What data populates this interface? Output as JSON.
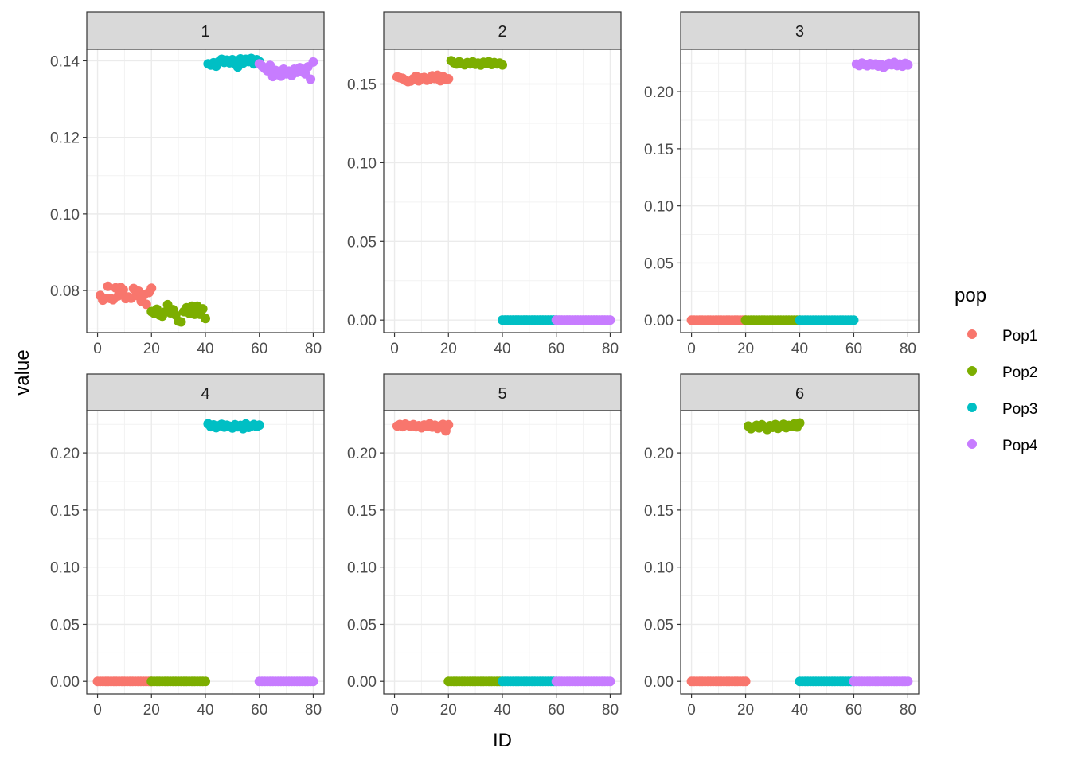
{
  "chart_data": {
    "type": "scatter",
    "layout": "faceted 2x3",
    "xlabel": "ID",
    "ylabel": "value",
    "legend": {
      "title": "pop",
      "position": "right",
      "entries": [
        {
          "name": "Pop1",
          "color": "#F8766D"
        },
        {
          "name": "Pop2",
          "color": "#7CAE00"
        },
        {
          "name": "Pop3",
          "color": "#00BFC4"
        },
        {
          "name": "Pop4",
          "color": "#C77CFF"
        }
      ]
    },
    "x_ticks": [
      "0",
      "20",
      "40",
      "60",
      "80"
    ],
    "xlim": [
      0,
      80
    ],
    "grid": true,
    "facets": [
      {
        "label": "1",
        "ylim": [
          0.069,
          0.143
        ],
        "y_ticks": [
          "0.08",
          "0.10",
          "0.12",
          "0.14"
        ],
        "series": [
          {
            "name": "Pop1",
            "segment": [
              1,
              20
            ],
            "values": [
              0.0787,
              0.0775,
              0.0779,
              0.0811,
              0.0779,
              0.0776,
              0.0807,
              0.0786,
              0.0808,
              0.0802,
              0.0779,
              0.0783,
              0.078,
              0.0805,
              0.0787,
              0.0798,
              0.0772,
              0.0788,
              0.0764,
              0.0795,
              0.0806
            ]
          },
          {
            "name": "Pop2",
            "segment": [
              20,
              40
            ],
            "values": [
              0.0745,
              0.0741,
              0.0751,
              0.0736,
              0.0733,
              0.0744,
              0.0763,
              0.0742,
              0.075,
              0.0736,
              0.072,
              0.0718,
              0.0745,
              0.0755,
              0.0741,
              0.0759,
              0.0738,
              0.0759,
              0.0738,
              0.0752,
              0.0727
            ]
          },
          {
            "name": "Pop3",
            "segment": [
              41,
              60
            ],
            "values": [
              0.1392,
              0.1389,
              0.1395,
              0.1386,
              0.1398,
              0.1404,
              0.1396,
              0.1402,
              0.1395,
              0.1403,
              0.1393,
              0.1384,
              0.1405,
              0.1394,
              0.1404,
              0.1398,
              0.1406,
              0.1392,
              0.1403,
              0.1398
            ]
          },
          {
            "name": "Pop4",
            "segment": [
              60,
              80
            ],
            "values": [
              0.1392,
              0.1386,
              0.138,
              0.1374,
              0.1388,
              0.1359,
              0.1375,
              0.1368,
              0.136,
              0.1378,
              0.1366,
              0.1373,
              0.1362,
              0.1378,
              0.137,
              0.1382,
              0.1373,
              0.1366,
              0.1384,
              0.1352,
              0.1397
            ]
          }
        ]
      },
      {
        "label": "2",
        "ylim": [
          -0.008,
          0.172
        ],
        "y_ticks": [
          "0.00",
          "0.05",
          "0.10",
          "0.15"
        ],
        "series": [
          {
            "name": "Pop1",
            "segment": [
              1,
              20
            ],
            "values": [
              0.1545,
              0.154,
              0.1536,
              0.1523,
              0.1515,
              0.1519,
              0.1534,
              0.1549,
              0.152,
              0.1538,
              0.1541,
              0.1524,
              0.153,
              0.1552,
              0.1535,
              0.1555,
              0.1521,
              0.1546,
              0.153,
              0.1533
            ]
          },
          {
            "name": "Pop2",
            "segment": [
              21,
              40
            ],
            "values": [
              0.1648,
              0.1635,
              0.1627,
              0.1641,
              0.163,
              0.1622,
              0.1636,
              0.1628,
              0.1641,
              0.1625,
              0.1633,
              0.162,
              0.1638,
              0.1629,
              0.1641,
              0.1624,
              0.1636,
              0.1628,
              0.1633,
              0.1621
            ]
          },
          {
            "name": "Pop3",
            "segment": [
              40,
              60
            ],
            "values": [
              0,
              0,
              0,
              0,
              0,
              0,
              0,
              0,
              0,
              0,
              0,
              0,
              0,
              0,
              0,
              0,
              0,
              0,
              0,
              0,
              0
            ]
          },
          {
            "name": "Pop4",
            "segment": [
              60,
              80
            ],
            "values": [
              0,
              0,
              0,
              0,
              0,
              0,
              0,
              0,
              0,
              0,
              0,
              0,
              0,
              0,
              0,
              0,
              0,
              0,
              0,
              0,
              0
            ]
          }
        ]
      },
      {
        "label": "3",
        "ylim": [
          -0.011,
          0.237
        ],
        "y_ticks": [
          "0.00",
          "0.05",
          "0.10",
          "0.15",
          "0.20"
        ],
        "series": [
          {
            "name": "Pop1",
            "segment": [
              0,
              20
            ],
            "values": [
              0,
              0,
              0,
              0,
              0,
              0,
              0,
              0,
              0,
              0,
              0,
              0,
              0,
              0,
              0,
              0,
              0,
              0,
              0,
              0,
              0
            ]
          },
          {
            "name": "Pop2",
            "segment": [
              20,
              40
            ],
            "values": [
              0,
              0,
              0,
              0,
              0,
              0,
              0,
              0,
              0,
              0,
              0,
              0,
              0,
              0,
              0,
              0,
              0,
              0,
              0,
              0,
              0
            ]
          },
          {
            "name": "Pop3",
            "segment": [
              40,
              60
            ],
            "values": [
              0,
              0,
              0,
              0,
              0,
              0,
              0,
              0,
              0,
              0,
              0,
              0,
              0,
              0,
              0,
              0,
              0,
              0,
              0,
              0,
              0
            ]
          },
          {
            "name": "Pop4",
            "segment": [
              61,
              80
            ],
            "values": [
              0.224,
              0.2228,
              0.225,
              0.2236,
              0.2226,
              0.2245,
              0.2233,
              0.2241,
              0.2224,
              0.2237,
              0.2212,
              0.2229,
              0.2246,
              0.2235,
              0.2255,
              0.2228,
              0.224,
              0.2223,
              0.2247,
              0.2232
            ]
          }
        ]
      },
      {
        "label": "4",
        "ylim": [
          -0.011,
          0.237
        ],
        "y_ticks": [
          "0.00",
          "0.05",
          "0.10",
          "0.15",
          "0.20"
        ],
        "series": [
          {
            "name": "Pop1",
            "segment": [
              0,
              20
            ],
            "values": [
              0,
              0,
              0,
              0,
              0,
              0,
              0,
              0,
              0,
              0,
              0,
              0,
              0,
              0,
              0,
              0,
              0,
              0,
              0,
              0,
              0
            ]
          },
          {
            "name": "Pop2",
            "segment": [
              20,
              40
            ],
            "values": [
              0,
              0,
              0,
              0,
              0,
              0,
              0,
              0,
              0,
              0,
              0,
              0,
              0,
              0,
              0,
              0,
              0,
              0,
              0,
              0,
              0
            ]
          },
          {
            "name": "Pop3",
            "segment": [
              41,
              60
            ],
            "values": [
              0.2255,
              0.223,
              0.2245,
              0.2221,
              0.2238,
              0.225,
              0.2226,
              0.2242,
              0.2233,
              0.2218,
              0.2246,
              0.2229,
              0.224,
              0.2212,
              0.2253,
              0.2224,
              0.2236,
              0.2248,
              0.2231,
              0.2243
            ]
          },
          {
            "name": "Pop4",
            "segment": [
              60,
              80
            ],
            "values": [
              0,
              0,
              0,
              0,
              0,
              0,
              0,
              0,
              0,
              0,
              0,
              0,
              0,
              0,
              0,
              0,
              0,
              0,
              0,
              0,
              0
            ]
          }
        ]
      },
      {
        "label": "5",
        "ylim": [
          -0.011,
          0.237
        ],
        "y_ticks": [
          "0.00",
          "0.05",
          "0.10",
          "0.15",
          "0.20"
        ],
        "series": [
          {
            "name": "Pop1",
            "segment": [
              1,
              20
            ],
            "values": [
              0.2236,
              0.2248,
              0.223,
              0.2252,
              0.2241,
              0.2234,
              0.2247,
              0.2229,
              0.2238,
              0.222,
              0.2244,
              0.2231,
              0.2254,
              0.2226,
              0.2242,
              0.2215,
              0.2237,
              0.2249,
              0.2193,
              0.2246
            ]
          },
          {
            "name": "Pop2",
            "segment": [
              20,
              40
            ],
            "values": [
              0,
              0,
              0,
              0,
              0,
              0,
              0,
              0,
              0,
              0,
              0,
              0,
              0,
              0,
              0,
              0,
              0,
              0,
              0,
              0,
              0
            ]
          },
          {
            "name": "Pop3",
            "segment": [
              40,
              60
            ],
            "values": [
              0,
              0,
              0,
              0,
              0,
              0,
              0,
              0,
              0,
              0,
              0,
              0,
              0,
              0,
              0,
              0,
              0,
              0,
              0,
              0,
              0
            ]
          },
          {
            "name": "Pop4",
            "segment": [
              60,
              80
            ],
            "values": [
              0,
              0,
              0,
              0,
              0,
              0,
              0,
              0,
              0,
              0,
              0,
              0,
              0,
              0,
              0,
              0,
              0,
              0,
              0,
              0,
              0
            ]
          }
        ]
      },
      {
        "label": "6",
        "ylim": [
          -0.011,
          0.237
        ],
        "y_ticks": [
          "0.00",
          "0.05",
          "0.10",
          "0.15",
          "0.20"
        ],
        "series": [
          {
            "name": "Pop1",
            "segment": [
              0,
              20
            ],
            "values": [
              0,
              0,
              0,
              0,
              0,
              0,
              0,
              0,
              0,
              0,
              0,
              0,
              0,
              0,
              0,
              0,
              0,
              0,
              0,
              0,
              0
            ]
          },
          {
            "name": "Pop2",
            "segment": [
              21,
              40
            ],
            "values": [
              0.2235,
              0.2212,
              0.2228,
              0.2241,
              0.2219,
              0.2246,
              0.223,
              0.2205,
              0.2238,
              0.2224,
              0.2248,
              0.2215,
              0.2236,
              0.225,
              0.2221,
              0.224,
              0.2232,
              0.2253,
              0.2227,
              0.2262
            ]
          },
          {
            "name": "Pop3",
            "segment": [
              40,
              60
            ],
            "values": [
              0,
              0,
              0,
              0,
              0,
              0,
              0,
              0,
              0,
              0,
              0,
              0,
              0,
              0,
              0,
              0,
              0,
              0,
              0,
              0,
              0
            ]
          },
          {
            "name": "Pop4",
            "segment": [
              60,
              80
            ],
            "values": [
              0,
              0,
              0,
              0,
              0,
              0,
              0,
              0,
              0,
              0,
              0,
              0,
              0,
              0,
              0,
              0,
              0,
              0,
              0,
              0,
              0
            ]
          }
        ]
      }
    ]
  }
}
